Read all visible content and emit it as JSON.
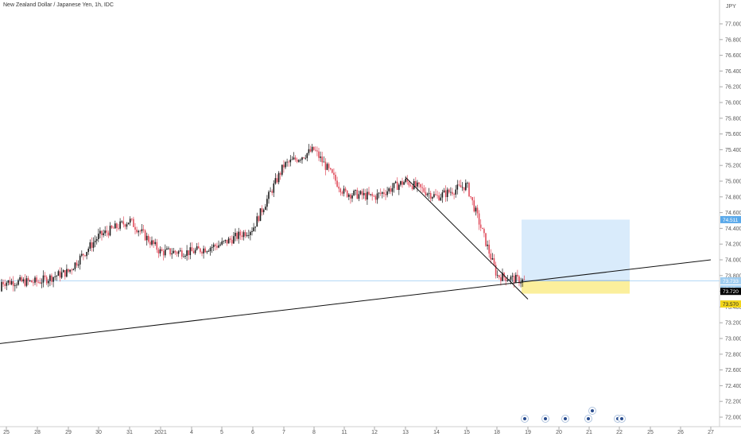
{
  "header": {
    "title": "New Zealand Dollar / Japanese Yen, 1h, IDC"
  },
  "axis": {
    "currency": "JPY"
  },
  "colors": {
    "up": "#1a1a1a",
    "down": "#e04c5c",
    "profit_zone": "#d9ebfb",
    "loss_zone": "#fbef9c",
    "last": "#000000",
    "target": "#5aa9ea",
    "stop": "#f2d51b"
  },
  "chart_data": {
    "type": "candlestick",
    "title": "New Zealand Dollar / Japanese Yen, 1h, IDC",
    "ylim": [
      71.85,
      77.2
    ],
    "y_ticks": [
      "77.000",
      "76.800",
      "76.600",
      "76.400",
      "76.200",
      "76.000",
      "75.800",
      "75.600",
      "75.400",
      "75.200",
      "75.000",
      "74.800",
      "74.600",
      "74.400",
      "74.200",
      "74.000",
      "73.800",
      "73.600",
      "73.400",
      "73.200",
      "73.000",
      "72.800",
      "72.600",
      "72.400",
      "72.200",
      "72.000"
    ],
    "x_ticks": [
      "25",
      "28",
      "29",
      "30",
      "31",
      "2021",
      "4",
      "5",
      "6",
      "7",
      "8",
      "11",
      "12",
      "13",
      "14",
      "15",
      "18",
      "19",
      "20",
      "21",
      "22",
      "25",
      "26",
      "27"
    ],
    "series": [
      {
        "x": "25",
        "close": 73.6
      },
      {
        "x": "28",
        "close": 73.72
      },
      {
        "x": "29",
        "close": 73.85
      },
      {
        "x": "30",
        "close": 74.3
      },
      {
        "x": "31",
        "close": 74.5
      },
      {
        "x": "2021",
        "close": 74.1
      },
      {
        "x": "4",
        "close": 74.1
      },
      {
        "x": "5",
        "close": 74.2
      },
      {
        "x": "6",
        "close": 74.4
      },
      {
        "x": "7",
        "close": 75.2
      },
      {
        "x": "8",
        "close": 75.4
      },
      {
        "x": "11",
        "close": 74.85
      },
      {
        "x": "12",
        "close": 74.8
      },
      {
        "x": "13",
        "close": 75.0
      },
      {
        "x": "14",
        "close": 74.8
      },
      {
        "x": "15",
        "close": 74.95
      },
      {
        "x": "18",
        "close": 73.8
      },
      {
        "x": "19",
        "close": 73.72
      }
    ],
    "price_labels": [
      {
        "label": "74.511",
        "value": 74.511,
        "kind": "target"
      },
      {
        "label": "73.733",
        "value": 73.733,
        "kind": "ask"
      },
      {
        "label": "37:05",
        "value": 73.7,
        "kind": "countdown"
      },
      {
        "label": "73.720",
        "value": 73.72,
        "kind": "last"
      },
      {
        "label": "73.570",
        "value": 73.57,
        "kind": "stop"
      }
    ],
    "position": {
      "entry": 73.733,
      "target": 74.511,
      "stop": 73.57
    },
    "trendlines": [
      {
        "name": "rising-support",
        "from": {
          "x": "24",
          "y": 72.9
        },
        "to": {
          "x": "27",
          "y": 74.0
        }
      },
      {
        "name": "falling-line",
        "from": {
          "x": "13",
          "y": 75.05
        },
        "to": {
          "x": "19",
          "y": 73.5
        }
      }
    ],
    "grid": false
  }
}
